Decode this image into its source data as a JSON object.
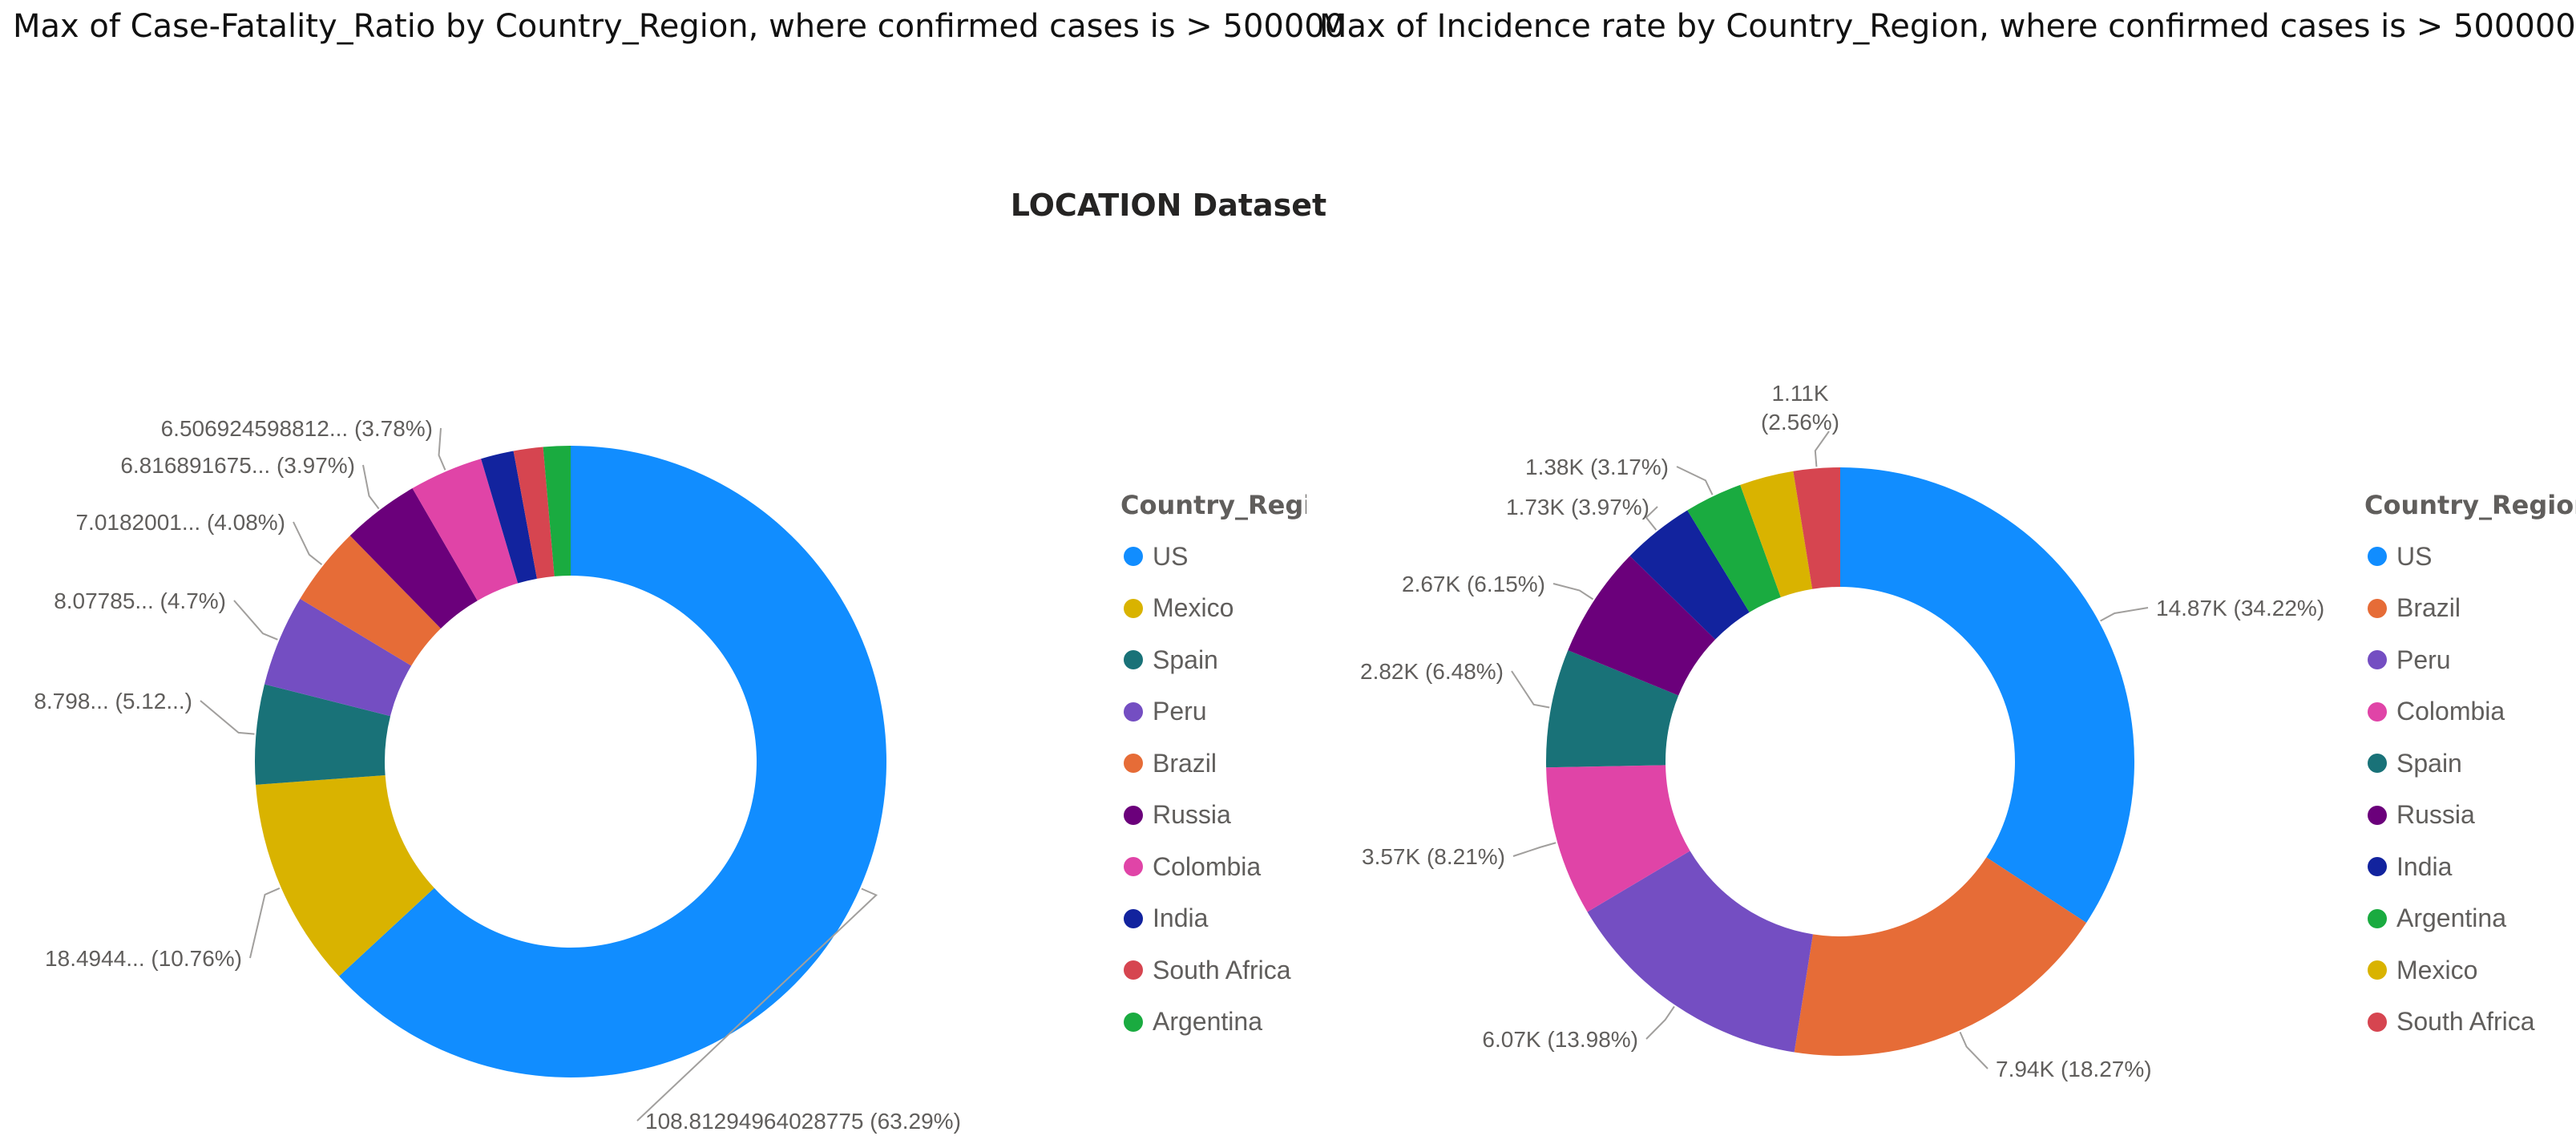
{
  "titles": {
    "left": "Max of Case-Fatality_Ratio by Country_Region, where confirmed cases is > 500000",
    "right": "Max of Incidence rate by Country_Region, where confirmed cases is > 500000",
    "report": "LOCATION Dataset"
  },
  "colors": {
    "US": "#118DFF",
    "Mexico": "#D9B300",
    "Spain": "#197278",
    "Peru": "#744EC2",
    "Brazil": "#E66C37",
    "Russia": "#6B007B",
    "Colombia": "#E044A7",
    "India": "#12239E",
    "South Africa": "#D64550",
    "Argentina": "#1AAB40"
  },
  "chart_data": [
    {
      "type": "pie",
      "style": "donut",
      "title": "Max of Case-Fatality_Ratio by Country_Region, where confirmed cases is > 500000",
      "legend_title": "Country_Regio",
      "legend_position": "right",
      "categories": [
        "US",
        "Mexico",
        "Spain",
        "Peru",
        "Brazil",
        "Russia",
        "Colombia",
        "India",
        "South Africa",
        "Argentina"
      ],
      "values": [
        108.81294964028775,
        18.4944,
        8.798,
        8.07785,
        7.0182001,
        6.816891675,
        6.506924598812,
        2.9,
        2.6,
        2.4
      ],
      "percents": [
        63.29,
        10.76,
        5.12,
        4.7,
        4.08,
        3.97,
        3.78,
        1.7,
        1.5,
        1.4
      ],
      "data_labels": [
        {
          "index": 0,
          "lines": [
            "108.81294964028775 (63.29%)"
          ]
        },
        {
          "index": 1,
          "lines": [
            "18.4944... (10.76%)"
          ]
        },
        {
          "index": 2,
          "lines": [
            "8.798... (5.12...)"
          ]
        },
        {
          "index": 3,
          "lines": [
            "8.07785... (4.7%)"
          ]
        },
        {
          "index": 4,
          "lines": [
            "7.0182001... (4.08%)"
          ]
        },
        {
          "index": 5,
          "lines": [
            "6.816891675... (3.97%)"
          ]
        },
        {
          "index": 6,
          "lines": [
            "6.506924598812... (3.78%)"
          ]
        }
      ]
    },
    {
      "type": "pie",
      "style": "donut",
      "title": "Max of Incidence rate by Country_Region, where confirmed cases is > 500000",
      "legend_title": "Country_Region",
      "legend_position": "right",
      "categories": [
        "US",
        "Brazil",
        "Peru",
        "Colombia",
        "Spain",
        "Russia",
        "India",
        "Argentina",
        "Mexico",
        "South Africa"
      ],
      "values": [
        14870,
        7940,
        6070,
        3570,
        2820,
        2670,
        1730,
        1380,
        1290,
        1110
      ],
      "percents": [
        34.22,
        18.27,
        13.98,
        8.21,
        6.48,
        6.15,
        3.97,
        3.17,
        2.97,
        2.56
      ],
      "data_labels": [
        {
          "index": 0,
          "lines": [
            "14.87K (34.22%)"
          ]
        },
        {
          "index": 1,
          "lines": [
            "7.94K (18.27%)"
          ]
        },
        {
          "index": 2,
          "lines": [
            "6.07K (13.98%)"
          ]
        },
        {
          "index": 3,
          "lines": [
            "3.57K (8.21%)"
          ]
        },
        {
          "index": 4,
          "lines": [
            "2.82K (6.48%)"
          ]
        },
        {
          "index": 5,
          "lines": [
            "2.67K (6.15%)"
          ]
        },
        {
          "index": 6,
          "lines": [
            "1.73K (3.97%)"
          ]
        },
        {
          "index": 7,
          "lines": [
            "1.38K (3.17%)"
          ]
        },
        {
          "index": 9,
          "lines": [
            "1.11K",
            "(2.56%)"
          ]
        }
      ]
    }
  ]
}
